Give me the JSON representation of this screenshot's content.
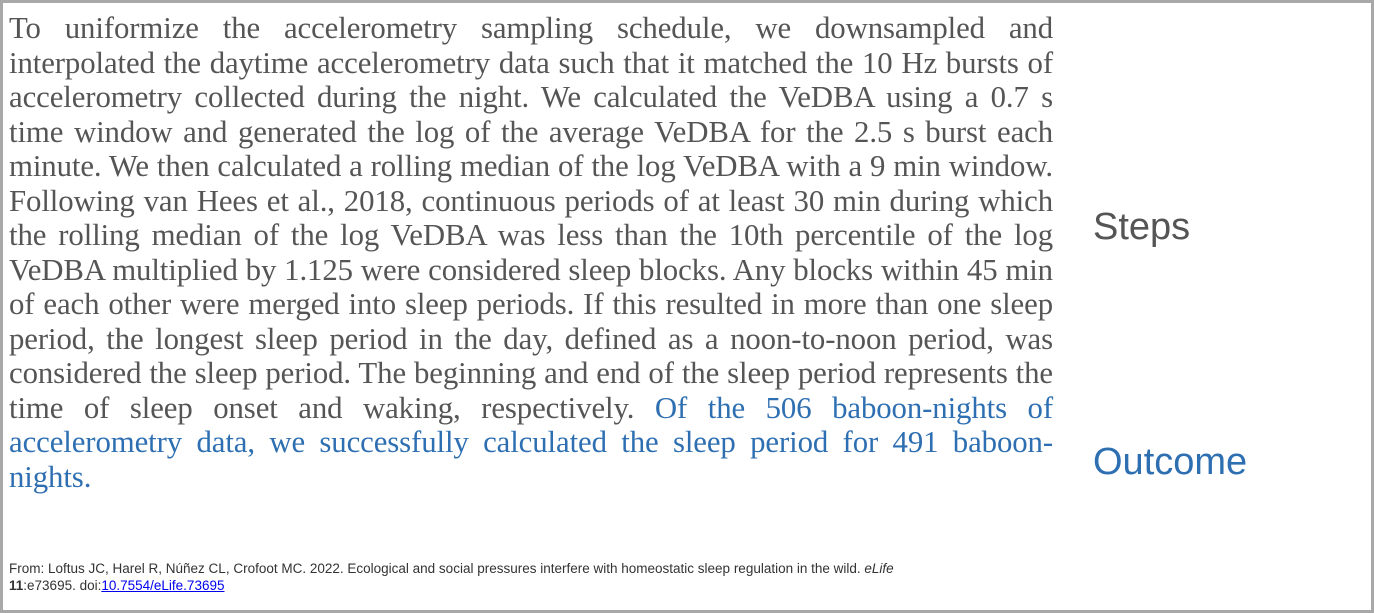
{
  "passage": {
    "steps_text": "To uniformize the accelerometry sampling schedule, we downsampled and interpolated the daytime accelerometry data such that it matched the 10 Hz bursts of accelerometry collected during the night. We calculated the VeDBA using a 0.7 s time window and generated the log of the average VeDBA for the 2.5 s burst each minute. We then calculated a rolling median of the log VeDBA with a 9 min window. Following van Hees et al., 2018, continuous periods of at least 30 min during which the rolling median of the log VeDBA was less than the 10th percentile of the log VeDBA multiplied by 1.125 were considered sleep blocks. Any blocks within 45 min of each other were merged into sleep periods. If this resulted in more than one sleep period, the longest sleep period in the day, defined as a noon-to-noon period, was considered the sleep period. The beginning and end of the sleep period represents the time of sleep onset and waking, respectively.",
    "outcome_text": "Of the 506 baboon-nights of accelerometry data, we successfully calculated the sleep period for 491 baboon-nights."
  },
  "labels": {
    "steps": "Steps",
    "outcome": "Outcome"
  },
  "citation": {
    "prefix": "From: Loftus JC, Harel R, Núñez CL, Crofoot MC. 2022. Ecological and social pressures interfere with homeostatic sleep regulation in the wild. ",
    "journal": "eLife",
    "volume": "11",
    "article": ":e73695. doi:",
    "doi": "10.7554/eLife.73695"
  },
  "colors": {
    "steps_text": "#555555",
    "outcome_text": "#2e6fb2",
    "border": "#a8a8a8",
    "link": "#0000ee"
  }
}
